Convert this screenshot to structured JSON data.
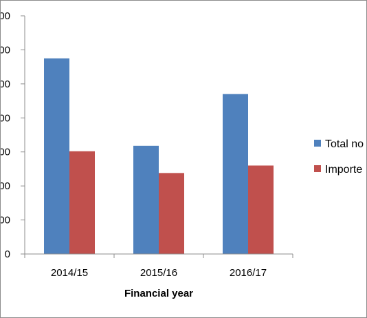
{
  "chart_data": {
    "type": "bar",
    "categories": [
      "2014/15",
      "2015/16",
      "2016/17"
    ],
    "series": [
      {
        "name": "Total no",
        "color": "#4f81bd",
        "values": [
          5750,
          3180,
          4700
        ]
      },
      {
        "name": "Importe",
        "color": "#c0504d",
        "values": [
          3020,
          2380,
          2600
        ]
      }
    ],
    "y_tick_labels": [
      "0",
      "00",
      "00",
      "00",
      "00",
      "00",
      "00",
      "00"
    ],
    "y_tick_values": [
      0,
      1000,
      2000,
      3000,
      4000,
      5000,
      6000,
      7000
    ],
    "ylim": [
      0,
      7000
    ],
    "xlabel": "Financial year",
    "ylabel": "",
    "grid": false,
    "legend_position": "right"
  }
}
